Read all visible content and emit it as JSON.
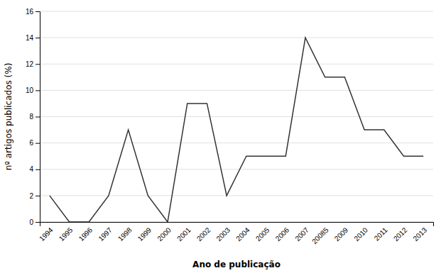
{
  "chart_data": {
    "type": "line",
    "categories": [
      "1994",
      "1995",
      "1996",
      "1997",
      "1998",
      "1999",
      "2000",
      "2001",
      "2002",
      "2003",
      "2004",
      "2005",
      "2006",
      "2007",
      "20085",
      "2009",
      "2010",
      "2011",
      "2012",
      "2013"
    ],
    "values": [
      2,
      0,
      0,
      2,
      7,
      2,
      0,
      9,
      9,
      2,
      5,
      5,
      5,
      14,
      11,
      11,
      7,
      7,
      5,
      5
    ],
    "color": "#333333",
    "xlabel": "Ano de publicação",
    "ylabel": "nº artigos publicados (%)",
    "ylim": [
      0,
      16
    ],
    "yticks": [
      0,
      2,
      4,
      6,
      8,
      10,
      12,
      14,
      16
    ],
    "grid": true
  }
}
